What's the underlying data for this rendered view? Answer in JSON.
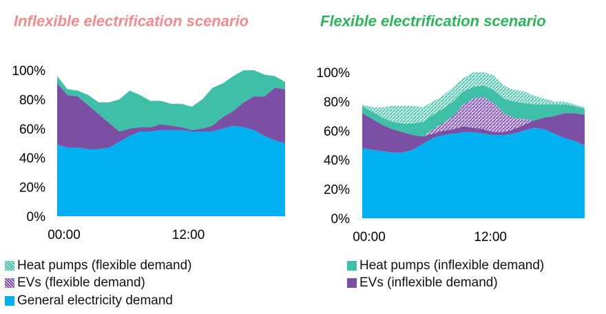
{
  "colors": {
    "general": "#00B0F0",
    "ev": "#7B4FA3",
    "heat": "#3FBFA8",
    "title_left": "#F08C8C",
    "title_right": "#2EB35A"
  },
  "legend": [
    {
      "label": "Heat pumps (flexible demand)",
      "pattern": "heat-hatched"
    },
    {
      "label": "EVs (flexible demand)",
      "pattern": "ev-hatched"
    },
    {
      "label": "General electricity demand",
      "pattern": "general-solid"
    },
    {
      "label": "Heat pumps (inflexible demand)",
      "pattern": "heat-solid"
    },
    {
      "label": "EVs (inflexible demand)",
      "pattern": "ev-solid"
    }
  ],
  "chart_data": [
    {
      "type": "area",
      "stacked": true,
      "title": "Inflexible electrification scenario",
      "x_ticks": [
        "00:00",
        "12:00"
      ],
      "x_tick_index": [
        0,
        12
      ],
      "ylim": [
        0,
        100
      ],
      "y_ticks": [
        "0%",
        "20%",
        "40%",
        "60%",
        "80%",
        "100%"
      ],
      "grid": false,
      "series": [
        {
          "name": "General electricity demand",
          "style": "general-solid",
          "values": [
            49,
            47,
            47,
            46,
            46,
            47,
            51,
            55,
            58,
            58,
            59,
            59,
            59,
            58,
            58,
            58,
            60,
            62,
            61,
            59,
            55,
            52,
            50
          ]
        },
        {
          "name": "EVs (inflexible demand)",
          "style": "ev-solid",
          "values": [
            42,
            36,
            35,
            30,
            24,
            17,
            7,
            5,
            3,
            3,
            4,
            3,
            2,
            1,
            2,
            4,
            8,
            10,
            17,
            23,
            27,
            36,
            37
          ]
        },
        {
          "name": "Heat pumps (inflexible demand)",
          "style": "heat-solid",
          "values": [
            5,
            4,
            4,
            7,
            8,
            14,
            22,
            26,
            22,
            18,
            16,
            15,
            16,
            16,
            20,
            26,
            23,
            24,
            22,
            18,
            15,
            8,
            5
          ]
        }
      ]
    },
    {
      "type": "area",
      "stacked": true,
      "title": "Flexible electrification scenario",
      "x_ticks": [
        "00:00",
        "12:00"
      ],
      "x_tick_index": [
        0,
        12
      ],
      "ylim": [
        0,
        100
      ],
      "y_ticks": [
        "0%",
        "20%",
        "40%",
        "60%",
        "80%",
        "100%"
      ],
      "grid": false,
      "series": [
        {
          "name": "General electricity demand",
          "style": "general-solid",
          "values": [
            48,
            47,
            46,
            45,
            45,
            47,
            51,
            55,
            57,
            58,
            59,
            59,
            58,
            57,
            57,
            58,
            60,
            62,
            61,
            58,
            55,
            53,
            50
          ]
        },
        {
          "name": "EVs (inflexible demand)",
          "style": "ev-solid",
          "values": [
            24,
            21,
            18,
            16,
            14,
            10,
            5,
            3,
            3,
            3,
            4,
            3,
            3,
            2,
            2,
            3,
            4,
            5,
            8,
            12,
            17,
            19,
            21
          ]
        },
        {
          "name": "EVs (flexible demand)",
          "style": "ev-hatched",
          "values": [
            0,
            0,
            0,
            0,
            0,
            0,
            0,
            3,
            5,
            9,
            15,
            20,
            22,
            20,
            13,
            8,
            4,
            0,
            0,
            0,
            0,
            0,
            0
          ]
        },
        {
          "name": "Heat pumps (inflexible demand)",
          "style": "heat-solid",
          "values": [
            5,
            5,
            5,
            5,
            6,
            8,
            10,
            10,
            10,
            10,
            9,
            8,
            8,
            9,
            10,
            11,
            11,
            11,
            9,
            8,
            6,
            5,
            4
          ]
        },
        {
          "name": "Heat pumps (flexible demand)",
          "style": "heat-hatched",
          "values": [
            1,
            3,
            7,
            11,
            12,
            12,
            10,
            9,
            9,
            10,
            9,
            10,
            9,
            10,
            9,
            8,
            8,
            6,
            4,
            2,
            2,
            1,
            1
          ]
        }
      ]
    }
  ]
}
